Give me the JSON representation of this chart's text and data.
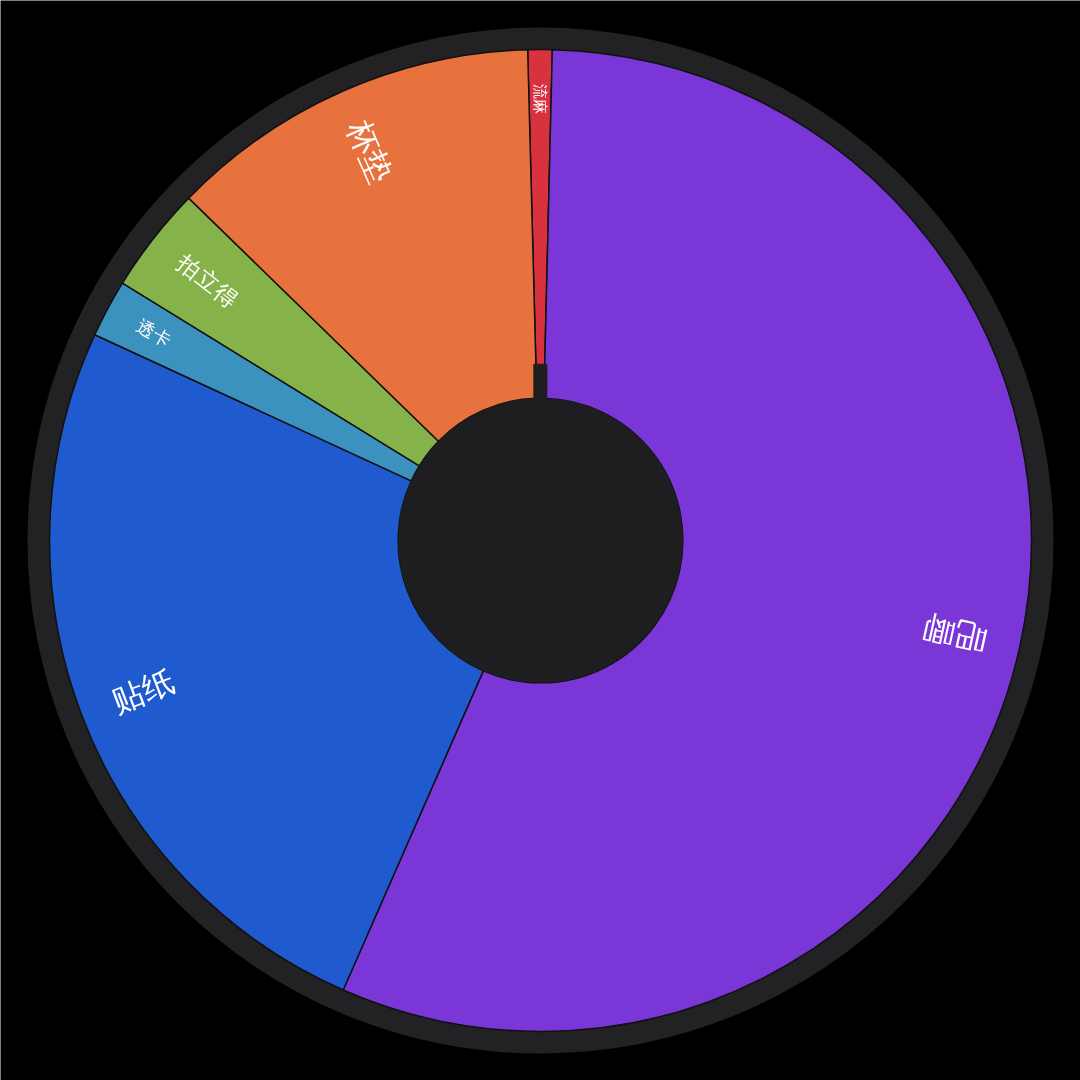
{
  "chart_data": {
    "type": "donut",
    "categories": [
      "流麻",
      "吧唧",
      "贴纸",
      "透卡",
      "拍立得",
      "杯垫"
    ],
    "values": [
      0.8,
      56.2,
      25.3,
      1.9,
      3.5,
      12.3
    ],
    "colors": [
      "#d8323f",
      "#7a36d6",
      "#1f5bcf",
      "#3b92bf",
      "#86b24a",
      "#e8723d"
    ],
    "needle": "流麻"
  }
}
